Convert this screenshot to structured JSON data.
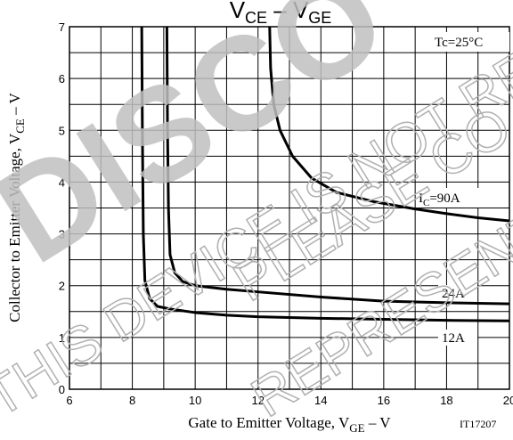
{
  "chart_data": {
    "type": "line",
    "title": {
      "main": "V",
      "sub1": "CE",
      "dash": " – V",
      "sub2": "GE"
    },
    "xlabel": {
      "text": "Gate to Emitter Voltage, V",
      "sub": "GE",
      "unit": " – V"
    },
    "ylabel": {
      "text": "Collector to Emitter Voltage, V",
      "sub": "CE",
      "unit": " – V"
    },
    "xlim": [
      6,
      20
    ],
    "ylim": [
      0,
      7
    ],
    "xticks": [
      6,
      8,
      10,
      12,
      14,
      16,
      18,
      20
    ],
    "yticks": [
      0,
      1,
      2,
      3,
      4,
      5,
      6,
      7
    ],
    "xgrid_minor": [
      7,
      9,
      11,
      13,
      15,
      17,
      19
    ],
    "ygrid_minor": [
      0.5,
      1.5,
      2.5,
      3.5,
      4.5,
      5.5,
      6.5
    ],
    "grid": true,
    "series": [
      {
        "name": "12A",
        "color": "#000000",
        "x": [
          8.3,
          8.32,
          8.35,
          8.4,
          8.55,
          8.8,
          9.2,
          10,
          11,
          12,
          14,
          16,
          18,
          20
        ],
        "values": [
          7,
          5,
          3,
          2.1,
          1.75,
          1.6,
          1.55,
          1.48,
          1.43,
          1.4,
          1.37,
          1.35,
          1.33,
          1.32
        ]
      },
      {
        "name": "24A",
        "color": "#000000",
        "x": [
          9.1,
          9.12,
          9.15,
          9.2,
          9.35,
          9.6,
          10,
          11,
          12,
          14,
          16,
          18,
          20
        ],
        "values": [
          7,
          5,
          3.5,
          2.6,
          2.25,
          2.08,
          2.0,
          1.93,
          1.88,
          1.78,
          1.7,
          1.67,
          1.65
        ]
      },
      {
        "name": "IC=90A",
        "color": "#000000",
        "x": [
          12.37,
          12.4,
          12.5,
          12.7,
          13.1,
          13.7,
          14.5,
          15.7,
          17,
          18,
          19,
          20
        ],
        "values": [
          7,
          6.2,
          5.5,
          5.0,
          4.5,
          4.08,
          3.8,
          3.62,
          3.48,
          3.39,
          3.31,
          3.25
        ]
      }
    ],
    "annotations": {
      "tc": "Tc=25°C",
      "ic_i": "I",
      "ic_sub": "C",
      "ic_rest": "=90A",
      "a24": "24A",
      "a12": "12A",
      "code": "IT17207"
    },
    "watermark": [
      "DISCO",
      "THIS DEVICE IS NOT REC",
      "PLEASE CO",
      "REPRESENTA"
    ]
  }
}
